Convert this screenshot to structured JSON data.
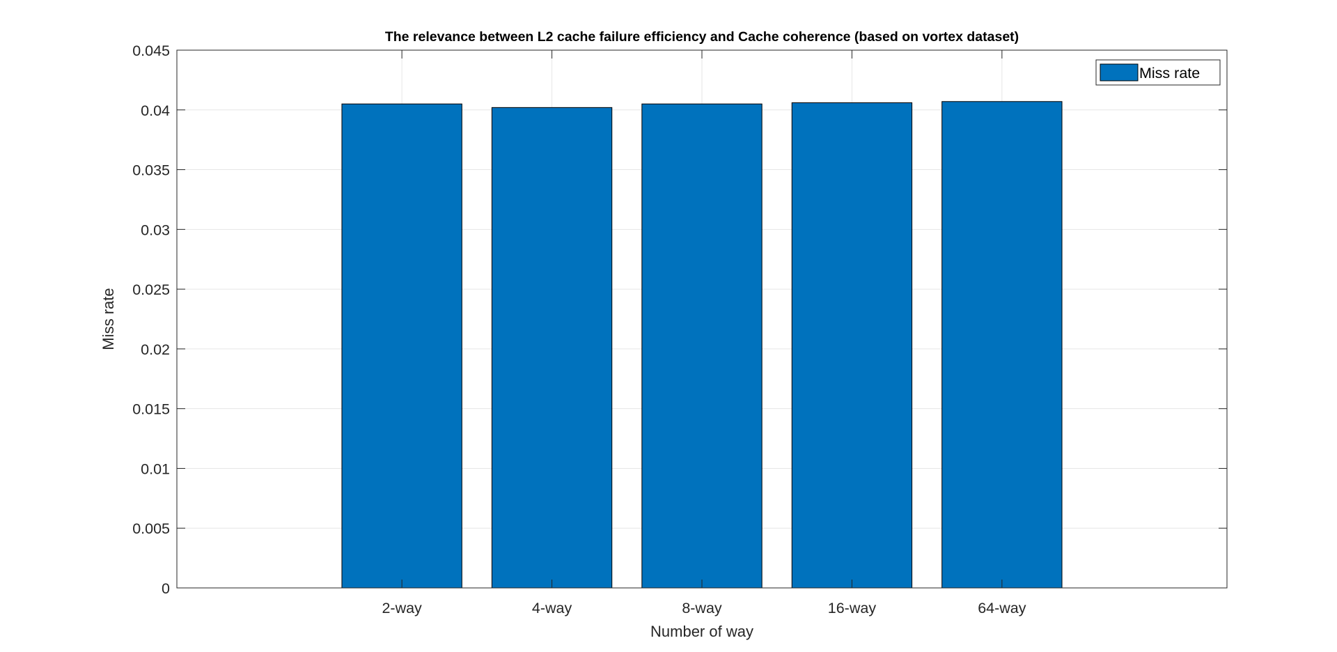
{
  "chart_data": {
    "type": "bar",
    "title": "The relevance between L2 cache failure efficiency and Cache coherence (based on vortex dataset)",
    "xlabel": "Number of way",
    "ylabel": "Miss rate",
    "categories": [
      "2-way",
      "4-way",
      "8-way",
      "16-way",
      "64-way"
    ],
    "series": [
      {
        "name": "Miss rate",
        "values": [
          0.0405,
          0.0402,
          0.0405,
          0.0406,
          0.0407
        ],
        "color": "#0072BD"
      }
    ],
    "ylim": [
      0,
      0.045
    ],
    "yticks": [
      0,
      0.005,
      0.01,
      0.015,
      0.02,
      0.025,
      0.03,
      0.035,
      0.04,
      0.045
    ],
    "ytick_labels": [
      "0",
      "0.005",
      "0.01",
      "0.015",
      "0.02",
      "0.025",
      "0.03",
      "0.035",
      "0.04",
      "0.045"
    ],
    "grid": true,
    "legend": {
      "position": "top-right",
      "entries": [
        "Miss rate"
      ]
    }
  }
}
